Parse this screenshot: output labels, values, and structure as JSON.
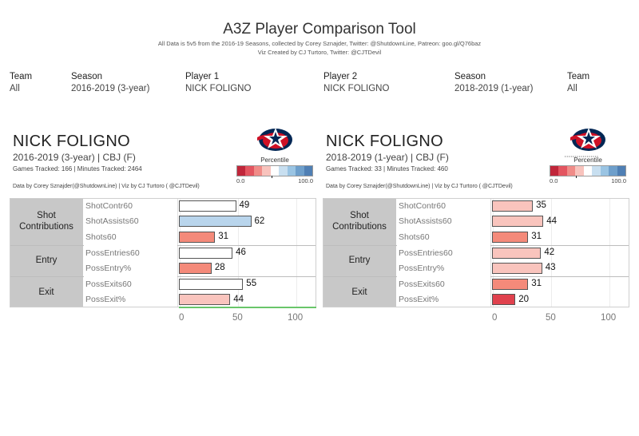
{
  "header": {
    "title": "A3Z Player Comparison Tool",
    "subtitle1": "All Data is 5v5 from the 2016-19 Seasons, collected by Corey Sznajder, Twitter: @ShutdownLine, Patreon: goo.gl/Q76baz",
    "subtitle2": "Viz Created by CJ Turtoro, Twitter: @CJTDevil"
  },
  "filters": {
    "team1": {
      "label": "Team",
      "value": "All"
    },
    "season1": {
      "label": "Season",
      "value": "2016-2019 (3-year)"
    },
    "player1": {
      "label": "Player 1",
      "value": "NICK FOLIGNO"
    },
    "player2": {
      "label": "Player 2",
      "value": "NICK FOLIGNO"
    },
    "season2": {
      "label": "Season",
      "value": "2018-2019 (1-year)"
    },
    "team2": {
      "label": "Team",
      "value": "All"
    }
  },
  "legend": {
    "title": "Percentile",
    "min": "0.0",
    "max": "100.0",
    "colors": [
      "#c0263a",
      "#e35560",
      "#f08c88",
      "#f8c3bd",
      "#ffffff",
      "#c8dff0",
      "#9ac4e3",
      "#6e9fcb",
      "#4f7fb4"
    ]
  },
  "panels": [
    {
      "name": "NICK FOLIGNO",
      "season_line": "2016-2019 (3-year) | CBJ (F)",
      "games_line": "Games Tracked: 166  | Minutes Tracked: 2464",
      "credit": "Data by Corey Sznajder(@ShutdownLine) | Viz by CJ Turtoro ( @CJTDevil)",
      "logo_caption": "",
      "legend_marker": 0.46
    },
    {
      "name": "NICK FOLIGNO",
      "season_line": "2018-2019 (1-year) | CBJ (F)",
      "games_line": "Games Tracked: 33  | Minutes Tracked: 460",
      "credit": "Data by Corey Sznajder(@ShutdownLine) | Viz by CJ Turtoro ( @CJTDevil)",
      "logo_caption": "• • • • • • • • • • • • • • • • •",
      "legend_marker": 0.34
    }
  ],
  "chart_data": [
    {
      "type": "bar",
      "orientation": "horizontal",
      "groups": [
        {
          "label": "Shot Contributions",
          "metrics": [
            "ShotContr60",
            "ShotAssists60",
            "Shots60"
          ]
        },
        {
          "label": "Entry",
          "metrics": [
            "PossEntries60",
            "PossEntry%"
          ]
        },
        {
          "label": "Exit",
          "metrics": [
            "PossExits60",
            "PossExit%"
          ]
        }
      ],
      "categories": [
        "ShotContr60",
        "ShotAssists60",
        "Shots60",
        "PossEntries60",
        "PossEntry%",
        "PossExits60",
        "PossExit%"
      ],
      "values": [
        49,
        62,
        31,
        46,
        28,
        55,
        44
      ],
      "colors": [
        "#ffffff",
        "#b9d5ec",
        "#f48a7a",
        "#ffffff",
        "#f48a7a",
        "#ffffff",
        "#f9c4bd"
      ],
      "xlim": [
        0,
        110
      ],
      "xticks": [
        0,
        50,
        100
      ],
      "grid": true
    },
    {
      "type": "bar",
      "orientation": "horizontal",
      "groups": [
        {
          "label": "Shot Contributions",
          "metrics": [
            "ShotContr60",
            "ShotAssists60",
            "Shots60"
          ]
        },
        {
          "label": "Entry",
          "metrics": [
            "PossEntries60",
            "PossEntry%"
          ]
        },
        {
          "label": "Exit",
          "metrics": [
            "PossExits60",
            "PossExit%"
          ]
        }
      ],
      "categories": [
        "ShotContr60",
        "ShotAssists60",
        "Shots60",
        "PossEntries60",
        "PossEntry%",
        "PossExits60",
        "PossExit%"
      ],
      "values": [
        35,
        44,
        31,
        42,
        43,
        31,
        20
      ],
      "colors": [
        "#f9c4bd",
        "#f9c4bd",
        "#f48a7a",
        "#f9c4bd",
        "#f9c4bd",
        "#f48a7a",
        "#e0414d"
      ],
      "xlim": [
        0,
        110
      ],
      "xticks": [
        0,
        50,
        100
      ],
      "grid": true
    }
  ]
}
